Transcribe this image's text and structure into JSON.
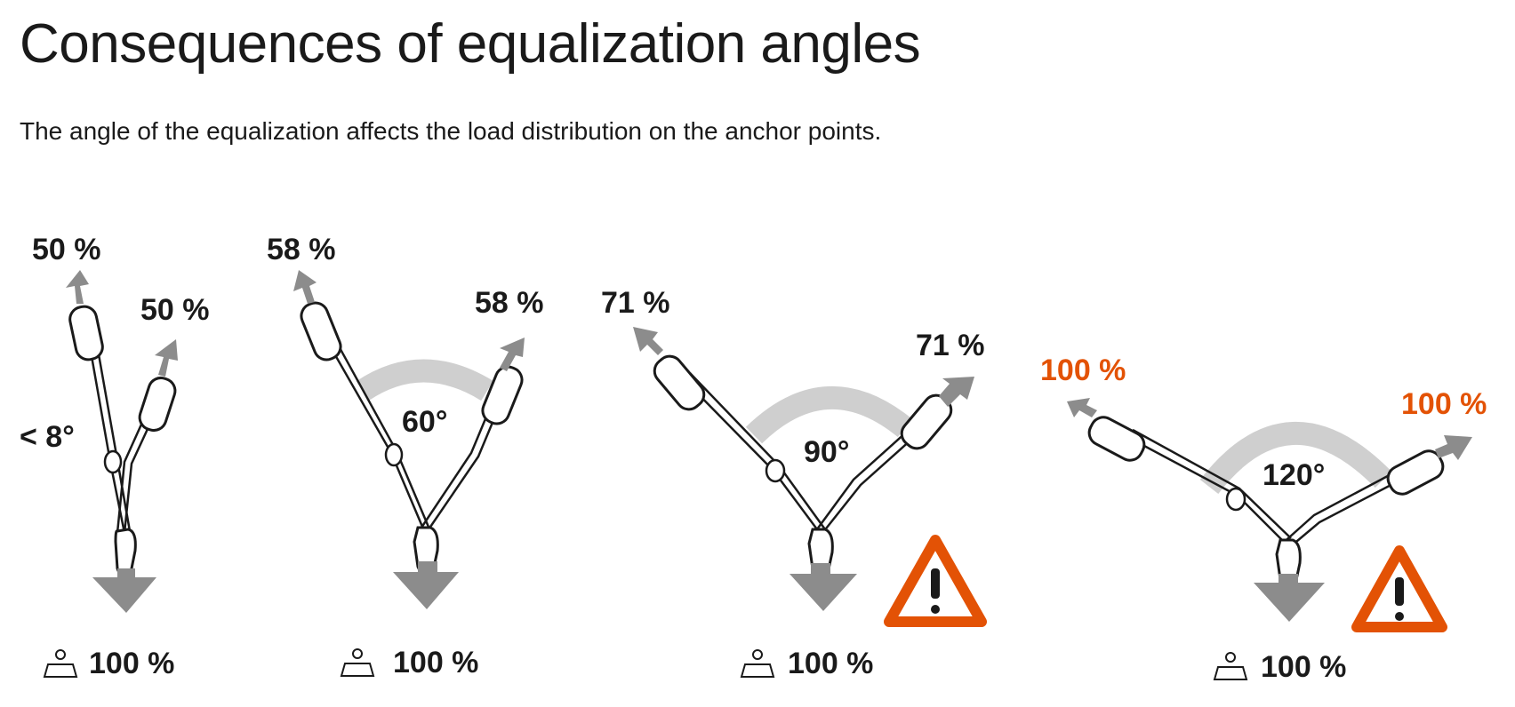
{
  "title": "Consequences of equalization angles",
  "subtitle": "The angle of the equalization affects the load distribution on the anchor points.",
  "colors": {
    "text": "#1a1a1a",
    "warning": "#e35205",
    "arrow": "#8c8c8c",
    "arc": "#cfcfcf"
  },
  "scenarios": [
    {
      "angle": "< 8°",
      "left_load": "50 %",
      "right_load": "50 %",
      "bottom_load": "100 %",
      "warning": false
    },
    {
      "angle": "60°",
      "left_load": "58 %",
      "right_load": "58 %",
      "bottom_load": "100 %",
      "warning": false
    },
    {
      "angle": "90°",
      "left_load": "71 %",
      "right_load": "71 %",
      "bottom_load": "100 %",
      "warning": true
    },
    {
      "angle": "120°",
      "left_load": "100 %",
      "right_load": "100 %",
      "bottom_load": "100 %",
      "warning": true
    }
  ]
}
